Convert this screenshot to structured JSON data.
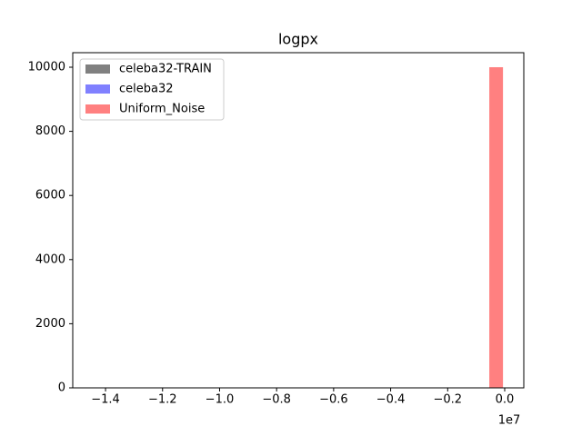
{
  "chart_data": {
    "type": "histogram",
    "title": "logpx",
    "x_offset_label": "1e7",
    "series": [
      {
        "name": "celeba32-TRAIN",
        "color": "#808080"
      },
      {
        "name": "celeba32",
        "color": "#8080ff"
      },
      {
        "name": "Uniform_Noise",
        "color": "#ff8080",
        "bins": [
          -0.054,
          -0.006
        ],
        "values": [
          10000
        ]
      }
    ],
    "xlim": [
      -1.515,
      0.067
    ],
    "xticks": [
      {
        "value": -1.4,
        "label": "−1.4"
      },
      {
        "value": -1.2,
        "label": "−1.2"
      },
      {
        "value": -1.0,
        "label": "−1.0"
      },
      {
        "value": -0.8,
        "label": "−0.8"
      },
      {
        "value": -0.6,
        "label": "−0.6"
      },
      {
        "value": -0.4,
        "label": "−0.4"
      },
      {
        "value": -0.2,
        "label": "−0.2"
      },
      {
        "value": 0,
        "label": "0.0"
      }
    ],
    "ylim": [
      0,
      10453
    ],
    "yticks": [
      0,
      2000,
      4000,
      6000,
      8000,
      10000
    ],
    "grid": false,
    "legend": "upper left"
  }
}
